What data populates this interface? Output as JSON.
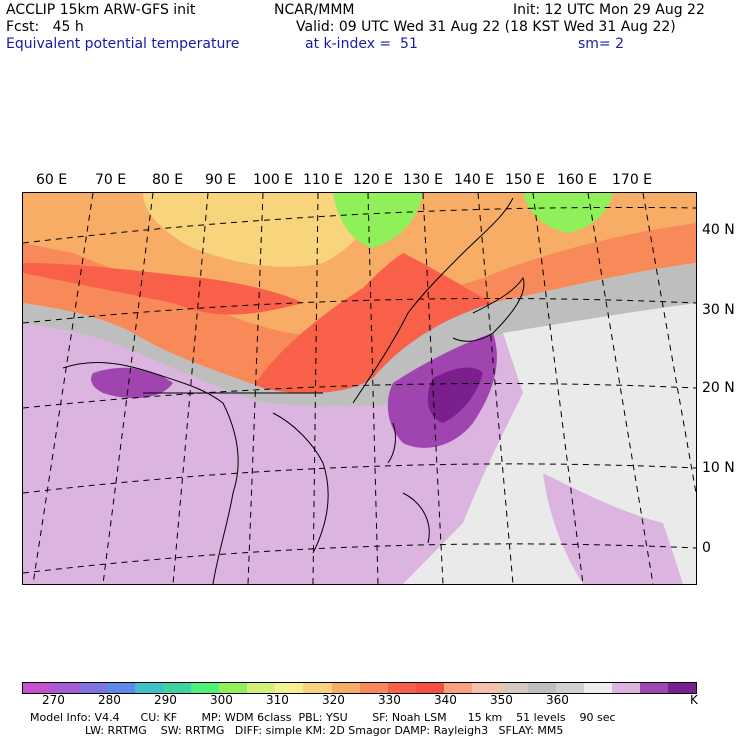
{
  "header": {
    "line1_left": "ACCLIP 15km ARW-GFS init",
    "line1_mid": "NCAR/MMM",
    "line1_right": "Init: 12 UTC Mon 29 Aug 22",
    "line2_left": "Fcst:   45 h",
    "line2_right": "Valid: 09 UTC Wed 31 Aug 22 (18 KST Wed 31 Aug 22)",
    "line3_left": "Equivalent potential temperature",
    "line3_mid": "at k-index =  51",
    "line3_right": "sm= 2"
  },
  "map": {
    "lon_labels": [
      "60 E",
      "70 E",
      "80 E",
      "90 E",
      "100 E",
      "110 E",
      "120 E",
      "130 E",
      "140 E",
      "150 E",
      "160 E",
      "170 E"
    ],
    "lat_labels": [
      "40 N",
      "30 N",
      "20 N",
      "10 N",
      "0"
    ]
  },
  "colorbar": {
    "colors": [
      "#c84fd0",
      "#a75ad8",
      "#7f73e0",
      "#5f89e8",
      "#3dc1c9",
      "#3ed3a0",
      "#4ff07a",
      "#8ff05a",
      "#d5f07a",
      "#f5f090",
      "#f8d47d",
      "#f8ad66",
      "#f88a5a",
      "#f8604a",
      "#f85040",
      "#f8a080",
      "#f5c0a8",
      "#d8c8c0",
      "#bebebe",
      "#d0d0d0",
      "#eeeeee",
      "#dcb4e0",
      "#a044b0",
      "#7b1f8f"
    ],
    "tick_labels": [
      "270",
      "280",
      "290",
      "300",
      "310",
      "320",
      "330",
      "340",
      "350",
      "360"
    ],
    "unit": "K"
  },
  "footer": {
    "line1": "Model Info: V4.4      CU: KF       MP: WDM 6class  PBL: YSU       SF: Noah LSM      15 km    51 levels    90 sec",
    "line2": "LW: RRTMG    SW: RRTMG   DIFF: simple KM: 2D Smagor DAMP: Rayleigh3   SFLAY: MM5"
  }
}
